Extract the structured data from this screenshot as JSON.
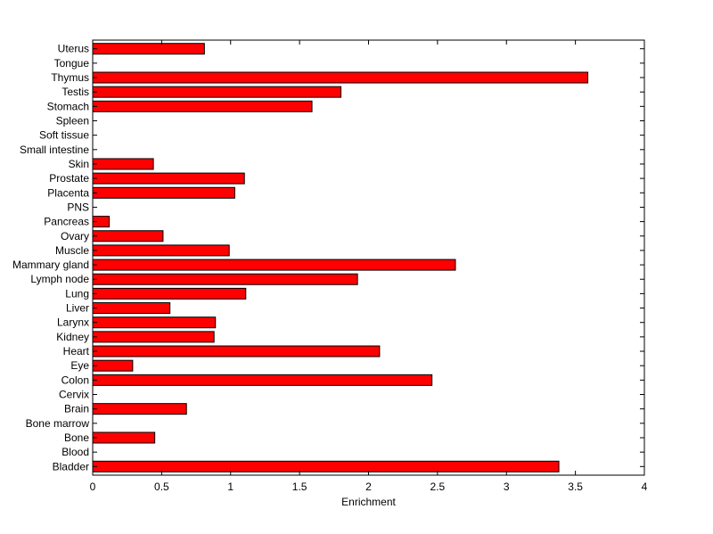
{
  "chart_data": {
    "type": "bar",
    "orientation": "horizontal",
    "title": "",
    "xlabel": "Enrichment",
    "ylabel": "",
    "xlim": [
      0,
      4
    ],
    "x_ticks": [
      0,
      0.5,
      1,
      1.5,
      2,
      2.5,
      3,
      3.5,
      4
    ],
    "x_tick_labels": [
      "0",
      "0.5",
      "1",
      "1.5",
      "2",
      "2.5",
      "3",
      "3.5",
      "4"
    ],
    "grid": false,
    "bar_color": "#ff0000",
    "bar_edge_color": "#000000",
    "categories": [
      "Bladder",
      "Blood",
      "Bone",
      "Bone marrow",
      "Brain",
      "Cervix",
      "Colon",
      "Eye",
      "Heart",
      "Kidney",
      "Larynx",
      "Liver",
      "Lung",
      "Lymph node",
      "Mammary gland",
      "Muscle",
      "Ovary",
      "Pancreas",
      "PNS",
      "Placenta",
      "Prostate",
      "Skin",
      "Small intestine",
      "Soft tissue",
      "Spleen",
      "Stomach",
      "Testis",
      "Thymus",
      "Tongue",
      "Uterus"
    ],
    "values": [
      3.38,
      0,
      0.45,
      0,
      0.68,
      0,
      2.46,
      0.29,
      2.08,
      0.88,
      0.89,
      0.56,
      1.11,
      1.92,
      2.63,
      0.99,
      0.51,
      0.12,
      0,
      1.03,
      1.1,
      0.44,
      0,
      0,
      0,
      1.59,
      1.8,
      3.59,
      0,
      0.81
    ]
  }
}
